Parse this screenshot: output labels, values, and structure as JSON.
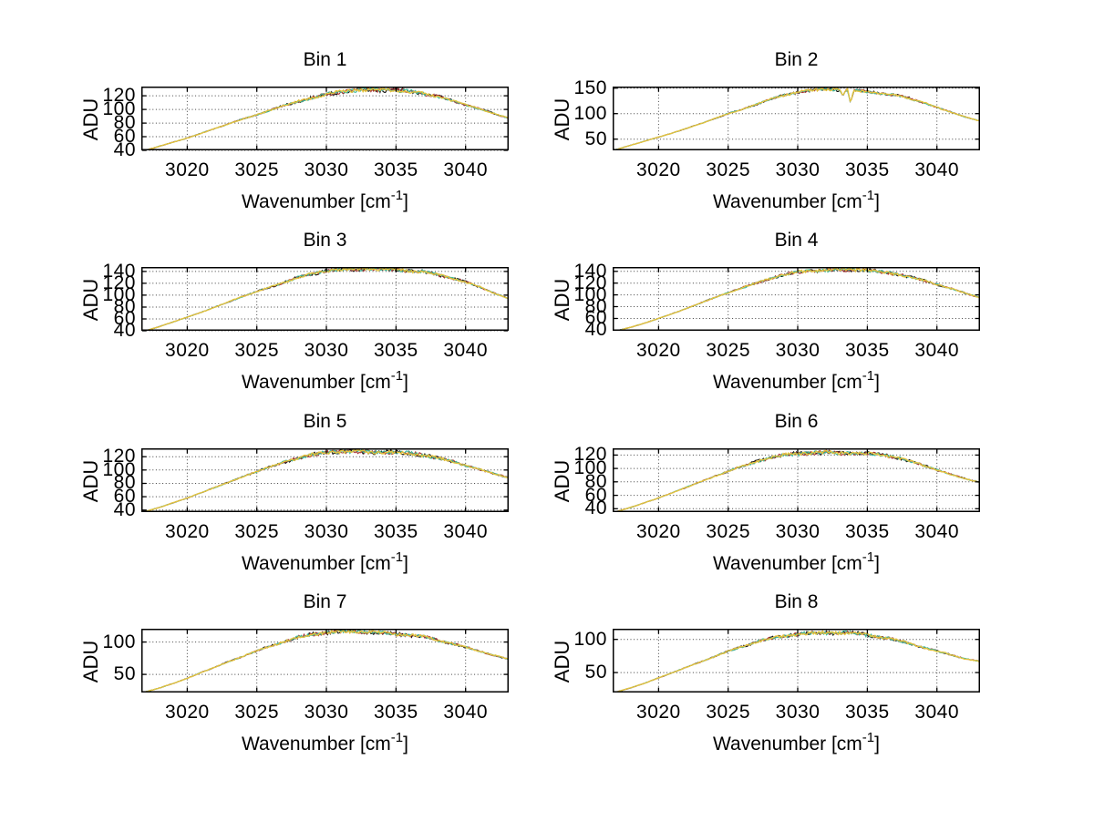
{
  "figure": {
    "background": "#ffffff"
  },
  "shared": {
    "ylabel": "ADU",
    "xlabel": "Wavenumber [cm^-1]",
    "xlabel_base": "Wavenumber [cm",
    "xlabel_sup": "-1",
    "xlabel_close": "]",
    "series_colors": [
      "#141414",
      "#a83434",
      "#3cba9c",
      "#e4c33e"
    ],
    "grid_color": "#404040",
    "axis_color": "#000000",
    "text_color": "#000000"
  },
  "chart_data": [
    {
      "type": "line",
      "title": "Bin 1",
      "xlabel": "Wavenumber [cm^-1]",
      "ylabel": "ADU",
      "grid": "dotted",
      "x_start": 3017,
      "x_step": 1,
      "x_end": 3043,
      "values": [
        40,
        46,
        52,
        58,
        65,
        72,
        79,
        86,
        92,
        99,
        106,
        112,
        117,
        122,
        126,
        128,
        129,
        129,
        128,
        126,
        123,
        119,
        113,
        107,
        101,
        94,
        88
      ],
      "xticks": [
        3020,
        3025,
        3030,
        3035,
        3040
      ],
      "yticks": [
        40,
        60,
        80,
        100,
        120
      ],
      "xlim": [
        3016.7,
        3043.1
      ],
      "ylim": [
        40,
        133.5
      ]
    },
    {
      "type": "line",
      "title": "Bin 2",
      "xlabel": "Wavenumber [cm^-1]",
      "ylabel": "ADU",
      "grid": "dotted",
      "x_start": 3017,
      "x_step": 1,
      "x_end": 3043,
      "values": [
        30,
        38,
        46,
        54,
        62,
        71,
        80,
        90,
        100,
        108,
        118,
        128,
        136,
        142,
        146,
        148,
        147,
        146,
        143,
        140,
        136,
        130,
        122,
        112,
        103,
        94,
        86
      ],
      "xticks": [
        3020,
        3025,
        3030,
        3035,
        3040
      ],
      "yticks": [
        50,
        100,
        150
      ],
      "xlim": [
        3016.7,
        3043.1
      ],
      "ylim": [
        28,
        153
      ],
      "dips": [
        {
          "x": 3033.8,
          "to": 120
        },
        {
          "x": 3033.25,
          "to": 135
        }
      ]
    },
    {
      "type": "line",
      "title": "Bin 3",
      "xlabel": "Wavenumber [cm^-1]",
      "ylabel": "ADU",
      "grid": "dotted",
      "x_start": 3017,
      "x_step": 1,
      "x_end": 3043,
      "values": [
        40,
        47,
        55,
        63,
        71,
        80,
        89,
        98,
        106,
        114,
        122,
        130,
        136,
        141,
        143,
        144,
        145,
        144,
        143,
        141,
        139,
        135,
        129,
        122,
        114,
        104,
        95
      ],
      "xticks": [
        3020,
        3025,
        3030,
        3035,
        3040
      ],
      "yticks": [
        40,
        60,
        80,
        100,
        120,
        140
      ],
      "xlim": [
        3016.7,
        3043.1
      ],
      "ylim": [
        40,
        147.5
      ]
    },
    {
      "type": "line",
      "title": "Bin 4",
      "xlabel": "Wavenumber [cm^-1]",
      "ylabel": "ADU",
      "grid": "dotted",
      "x_start": 3017,
      "x_step": 1,
      "x_end": 3043,
      "values": [
        39,
        45,
        52,
        60,
        68,
        77,
        86,
        95,
        104,
        112,
        120,
        128,
        134,
        139,
        141,
        142,
        143,
        143,
        142,
        139,
        136,
        131,
        125,
        118,
        111,
        103,
        96
      ],
      "xticks": [
        3020,
        3025,
        3030,
        3035,
        3040
      ],
      "yticks": [
        40,
        60,
        80,
        100,
        120,
        140
      ],
      "xlim": [
        3016.7,
        3043.1
      ],
      "ylim": [
        39,
        147.5
      ]
    },
    {
      "type": "line",
      "title": "Bin 5",
      "xlabel": "Wavenumber [cm^-1]",
      "ylabel": "ADU",
      "grid": "dotted",
      "x_start": 3017,
      "x_step": 1,
      "x_end": 3043,
      "values": [
        38,
        44,
        51,
        58,
        66,
        74,
        82,
        90,
        98,
        105,
        112,
        118,
        123,
        126,
        128,
        128,
        127,
        127,
        126,
        125,
        122,
        118,
        113,
        107,
        101,
        95,
        89
      ],
      "xticks": [
        3020,
        3025,
        3030,
        3035,
        3040
      ],
      "yticks": [
        40,
        60,
        80,
        100,
        120
      ],
      "xlim": [
        3016.7,
        3043.1
      ],
      "ylim": [
        37,
        132.5
      ]
    },
    {
      "type": "line",
      "title": "Bin 6",
      "xlabel": "Wavenumber [cm^-1]",
      "ylabel": "ADU",
      "grid": "dotted",
      "x_start": 3017,
      "x_step": 1,
      "x_end": 3043,
      "values": [
        36,
        42,
        49,
        56,
        64,
        72,
        80,
        88,
        96,
        103,
        110,
        116,
        120,
        122,
        123,
        124,
        123,
        123,
        122,
        121,
        117,
        111,
        105,
        98,
        91,
        85,
        80
      ],
      "xticks": [
        3020,
        3025,
        3030,
        3035,
        3040
      ],
      "yticks": [
        40,
        60,
        80,
        100,
        120
      ],
      "xlim": [
        3016.7,
        3043.1
      ],
      "ylim": [
        35,
        130
      ]
    },
    {
      "type": "line",
      "title": "Bin 7",
      "xlabel": "Wavenumber [cm^-1]",
      "ylabel": "ADU",
      "grid": "dotted",
      "x_start": 3017,
      "x_step": 1,
      "x_end": 3043,
      "values": [
        23,
        29,
        36,
        44,
        53,
        61,
        70,
        78,
        86,
        94,
        101,
        107,
        112,
        115,
        116,
        117,
        116,
        114,
        112,
        111,
        108,
        103,
        98,
        92,
        86,
        80,
        74
      ],
      "xticks": [
        3020,
        3025,
        3030,
        3035,
        3040
      ],
      "yticks": [
        50,
        100
      ],
      "xlim": [
        3016.7,
        3043.1
      ],
      "ylim": [
        22,
        120.5
      ]
    },
    {
      "type": "line",
      "title": "Bin 8",
      "xlabel": "Wavenumber [cm^-1]",
      "ylabel": "ADU",
      "grid": "dotted",
      "x_start": 3017,
      "x_step": 1,
      "x_end": 3043,
      "values": [
        21,
        27,
        34,
        42,
        50,
        58,
        66,
        74,
        82,
        89,
        96,
        101,
        105,
        108,
        109,
        110,
        110,
        109,
        107,
        103,
        99,
        94,
        88,
        82,
        77,
        71,
        67
      ],
      "xticks": [
        3020,
        3025,
        3030,
        3035,
        3040
      ],
      "yticks": [
        50,
        100
      ],
      "xlim": [
        3016.7,
        3043.1
      ],
      "ylim": [
        20,
        116
      ]
    }
  ]
}
